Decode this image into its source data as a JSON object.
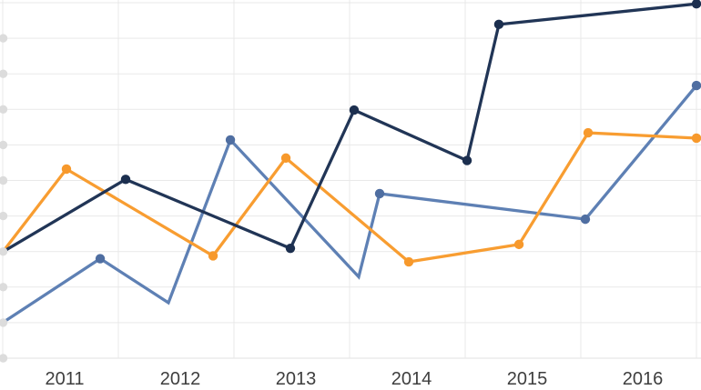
{
  "chart_data": {
    "type": "line",
    "title": "",
    "legend": {
      "visible": false
    },
    "background": "#ffffff",
    "gridline_color": "#e9e9e9",
    "axis_line_color": "#e0e0e0",
    "tick_dot_color": "#dcdcdc",
    "label_color": "#3e3e3e",
    "x_axis": {
      "type": "time-years",
      "tick_labels": [
        "2011",
        "2012",
        "2013",
        "2014",
        "2015",
        "2016"
      ],
      "range": [
        2010.5,
        2016.5
      ],
      "gridlines": true
    },
    "y_axis": {
      "tick_labels": [],
      "range": [
        0,
        10
      ],
      "gridline_divisions": 10,
      "gridlines": true,
      "tick_dots_on_left_edge": true
    },
    "series": [
      {
        "name": "steel-blue",
        "color": "#5e80b4",
        "marker_color": "#4f6ea1",
        "points": [
          {
            "x": 2010.5,
            "y": 1.0,
            "marker": false
          },
          {
            "x": 2011.343,
            "y": 2.8,
            "marker": true
          },
          {
            "x": 2011.933,
            "y": 1.56,
            "marker": false
          },
          {
            "x": 2012.469,
            "y": 6.14,
            "marker": true
          },
          {
            "x": 2013.579,
            "y": 2.29,
            "marker": false
          },
          {
            "x": 2013.76,
            "y": 4.63,
            "marker": true
          },
          {
            "x": 2015.539,
            "y": 3.91,
            "marker": true
          },
          {
            "x": 2016.5,
            "y": 7.67,
            "marker": true
          }
        ]
      },
      {
        "name": "orange",
        "color": "#f89d31",
        "marker_color": "#f7992c",
        "points": [
          {
            "x": 2010.5,
            "y": 2.99,
            "marker": false
          },
          {
            "x": 2011.051,
            "y": 5.32,
            "marker": true
          },
          {
            "x": 2012.319,
            "y": 2.88,
            "marker": true
          },
          {
            "x": 2012.949,
            "y": 5.63,
            "marker": true
          },
          {
            "x": 2014.012,
            "y": 2.71,
            "marker": true
          },
          {
            "x": 2014.965,
            "y": 3.2,
            "marker": true
          },
          {
            "x": 2015.563,
            "y": 6.34,
            "marker": true
          },
          {
            "x": 2016.5,
            "y": 6.19,
            "marker": true
          }
        ]
      },
      {
        "name": "dark-navy",
        "color": "#213556",
        "marker_color": "#1c2f4f",
        "points": [
          {
            "x": 2010.5,
            "y": 2.99,
            "marker": false
          },
          {
            "x": 2011.563,
            "y": 5.03,
            "marker": true
          },
          {
            "x": 2012.988,
            "y": 3.09,
            "marker": true
          },
          {
            "x": 2013.539,
            "y": 6.98,
            "marker": true
          },
          {
            "x": 2014.516,
            "y": 5.56,
            "marker": true
          },
          {
            "x": 2014.791,
            "y": 9.39,
            "marker": true
          },
          {
            "x": 2016.5,
            "y": 9.97,
            "marker": true
          }
        ]
      }
    ]
  }
}
